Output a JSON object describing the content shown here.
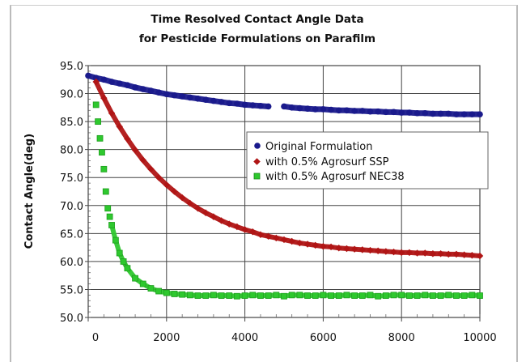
{
  "chart_data": {
    "type": "scatter",
    "title": [
      "Time Resolved Contact Angle Data",
      "for Pesticide Formulations on Parafilm"
    ],
    "xlabel": "",
    "ylabel": "Contact Angle(deg)",
    "xlim": [
      0,
      10000
    ],
    "ylim": [
      50,
      95
    ],
    "xticks": [
      "0",
      "2000",
      "4000",
      "6000",
      "8000",
      "10000"
    ],
    "yticks": [
      "50.0",
      "55.0",
      "60.0",
      "65.0",
      "70.0",
      "75.0",
      "80.0",
      "85.0",
      "90.0",
      "95.0"
    ],
    "grid": true,
    "legend_placement": "center-right",
    "series": [
      {
        "name": "Original Formulation",
        "marker": "circle",
        "color": "#1a1a8c",
        "x": [
          0,
          200,
          400,
          600,
          800,
          1000,
          1200,
          1400,
          1600,
          1800,
          2000,
          2200,
          2400,
          2600,
          2800,
          3000,
          3200,
          3400,
          3600,
          3800,
          4000,
          4200,
          4400,
          4600,
          5000,
          5200,
          5400,
          5600,
          5800,
          6000,
          6200,
          6400,
          6600,
          6800,
          7000,
          7200,
          7400,
          7600,
          7800,
          8000,
          8200,
          8400,
          8600,
          8800,
          9000,
          9200,
          9400,
          9600,
          9800,
          10000
        ],
        "y": [
          93.2,
          92.8,
          92.5,
          92.1,
          91.8,
          91.5,
          91.1,
          90.8,
          90.5,
          90.2,
          89.9,
          89.7,
          89.5,
          89.3,
          89.1,
          88.9,
          88.7,
          88.5,
          88.3,
          88.2,
          88.0,
          87.9,
          87.8,
          87.7,
          87.7,
          87.5,
          87.4,
          87.3,
          87.2,
          87.2,
          87.1,
          87.0,
          87.0,
          86.9,
          86.9,
          86.8,
          86.8,
          86.7,
          86.7,
          86.6,
          86.6,
          86.5,
          86.5,
          86.4,
          86.4,
          86.4,
          86.3,
          86.3,
          86.3,
          86.3
        ]
      },
      {
        "name": "with 0.5% Agrosurf SSP",
        "marker": "diamond",
        "color": "#b01515",
        "x": [
          200,
          400,
          600,
          800,
          1000,
          1200,
          1400,
          1600,
          1800,
          2000,
          2200,
          2400,
          2600,
          2800,
          3000,
          3200,
          3400,
          3600,
          3800,
          4000,
          4200,
          4400,
          4600,
          4800,
          5000,
          5200,
          5400,
          5600,
          5800,
          6000,
          6200,
          6400,
          6600,
          6800,
          7000,
          7200,
          7400,
          7600,
          7800,
          8000,
          8200,
          8400,
          8600,
          8800,
          9000,
          9200,
          9400,
          9600,
          9800,
          10000
        ],
        "y": [
          92.1,
          89.2,
          86.5,
          84.1,
          81.9,
          79.9,
          78.1,
          76.5,
          75.0,
          73.7,
          72.5,
          71.4,
          70.4,
          69.5,
          68.7,
          68.0,
          67.3,
          66.7,
          66.2,
          65.7,
          65.3,
          64.8,
          64.5,
          64.2,
          63.9,
          63.6,
          63.3,
          63.1,
          62.9,
          62.7,
          62.6,
          62.4,
          62.3,
          62.2,
          62.1,
          62.0,
          61.9,
          61.8,
          61.7,
          61.6,
          61.6,
          61.5,
          61.5,
          61.4,
          61.4,
          61.3,
          61.3,
          61.2,
          61.1,
          61.0
        ]
      },
      {
        "name": "with 0.5% Agrosurf NEC38",
        "marker": "square",
        "color": "#2ec82e",
        "x": [
          200,
          250,
          300,
          350,
          400,
          450,
          500,
          550,
          600,
          700,
          800,
          900,
          1000,
          1200,
          1400,
          1600,
          1800,
          2000,
          2200,
          2400,
          2600,
          2800,
          3000,
          3200,
          3400,
          3600,
          3800,
          4000,
          4200,
          4400,
          4600,
          4800,
          5000,
          5200,
          5400,
          5600,
          5800,
          6000,
          6200,
          6400,
          6600,
          6800,
          7000,
          7200,
          7400,
          7600,
          7800,
          8000,
          8200,
          8400,
          8600,
          8800,
          9000,
          9200,
          9400,
          9600,
          9800,
          10000
        ],
        "y": [
          88.0,
          85.0,
          82.0,
          79.5,
          76.5,
          72.5,
          69.5,
          68.0,
          66.5,
          63.8,
          61.5,
          60.0,
          58.8,
          57.0,
          56.0,
          55.2,
          54.7,
          54.4,
          54.2,
          54.1,
          54.0,
          53.9,
          53.9,
          54.0,
          53.9,
          53.9,
          53.8,
          53.9,
          54.0,
          53.9,
          53.9,
          54.0,
          53.8,
          54.0,
          54.0,
          53.9,
          53.9,
          54.0,
          53.9,
          53.9,
          54.0,
          53.9,
          53.9,
          54.0,
          53.8,
          53.9,
          54.0,
          54.0,
          53.9,
          53.9,
          54.0,
          53.9,
          53.9,
          54.0,
          53.9,
          53.9,
          54.0,
          53.9
        ]
      }
    ]
  }
}
